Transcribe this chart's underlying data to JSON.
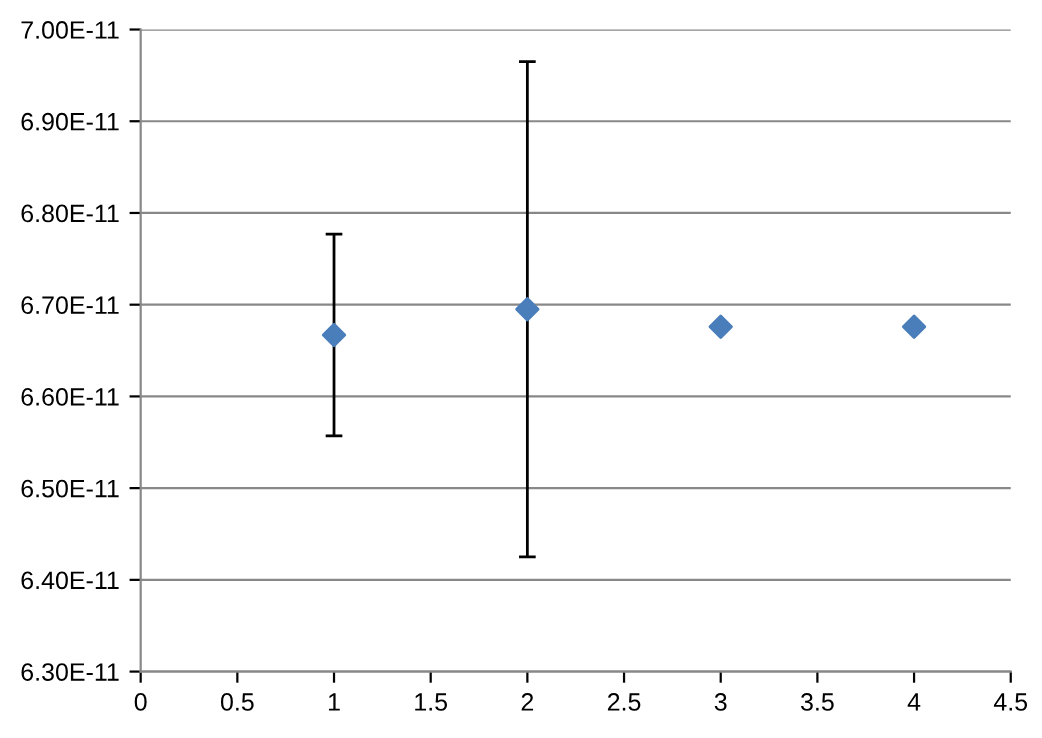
{
  "chart_data": {
    "type": "scatter",
    "x": [
      1,
      2,
      3,
      4
    ],
    "series": [
      {
        "color": "#4a7ebb",
        "values": [
          6.667e-11,
          6.695e-11,
          6.676e-11,
          6.676e-11
        ],
        "errors": [
          1.1e-12,
          2.7e-12,
          null,
          null
        ]
      }
    ],
    "xlim": [
      0,
      4.5
    ],
    "xticks": [
      0,
      0.5,
      1,
      1.5,
      2,
      2.5,
      3,
      3.5,
      4,
      4.5
    ],
    "ylim": [
      6.3e-11,
      7e-11
    ],
    "yticks": [
      {
        "value": 6.3e-11,
        "label": "6.30E-11"
      },
      {
        "value": 6.4e-11,
        "label": "6.40E-11"
      },
      {
        "value": 6.5e-11,
        "label": "6.50E-11"
      },
      {
        "value": 6.6e-11,
        "label": "6.60E-11"
      },
      {
        "value": 6.7e-11,
        "label": "6.70E-11"
      },
      {
        "value": 6.8e-11,
        "label": "6.80E-11"
      },
      {
        "value": 6.9e-11,
        "label": "6.90E-11"
      },
      {
        "value": 7e-11,
        "label": "7.00E-11"
      }
    ],
    "grid": "y",
    "marker": "diamond",
    "legend": false
  }
}
